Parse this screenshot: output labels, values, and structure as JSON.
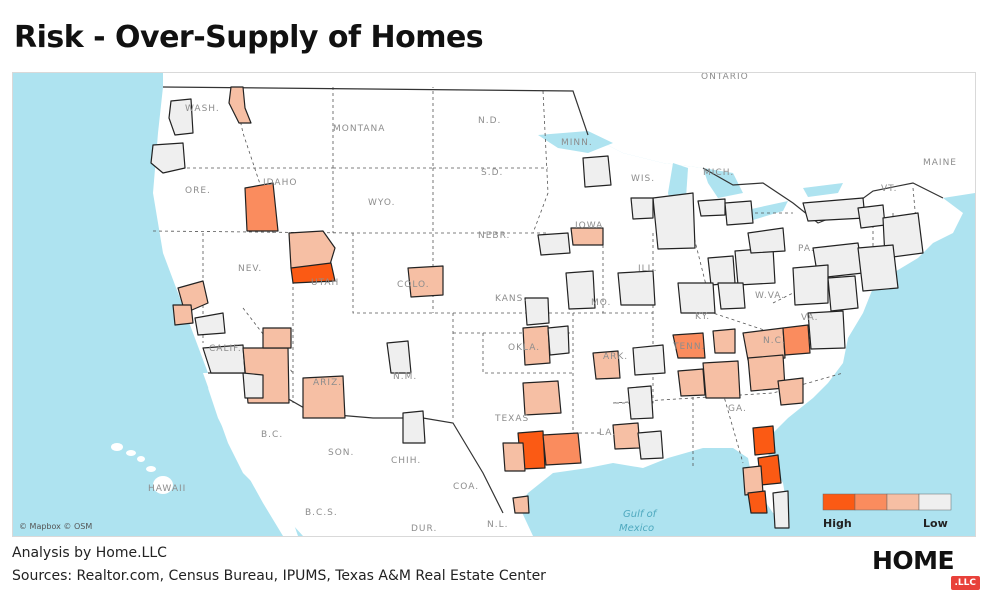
{
  "title": "Risk - Over-Supply of Homes",
  "footer": {
    "analysis": "Analysis by Home.LLC",
    "sources": "Sources: Realtor.com, Census Bureau, IPUMS, Texas A&M Real Estate Center"
  },
  "logo": {
    "main": "HOME",
    "badge": ".LLC"
  },
  "attribution": "© Mapbox © OSM",
  "legend": {
    "high_label": "High",
    "low_label": "Low",
    "colors": [
      "#fb5a14",
      "#fa8c5e",
      "#f6bfa4",
      "#efefef"
    ]
  },
  "labels": {
    "ontario": "ONTARIO",
    "wash": "WASH.",
    "montana": "MONTANA",
    "nd": "N.D.",
    "minn": "MINN.",
    "idaho": "IDAHO",
    "ore": "ORE.",
    "wyo": "WYO.",
    "sd": "S.D.",
    "wis": "WIS.",
    "mich": "MICH.",
    "maine": "MAINE",
    "vt": "VT.",
    "nebr": "NEBR.",
    "iowa": "IOWA",
    "pa": "PA.",
    "nev": "NEV.",
    "utah": "UTAH",
    "colo": "COLO.",
    "ill": "ILL.",
    "kans": "KANS.",
    "mo": "MO.",
    "wva": "W.VA.",
    "ky": "KY.",
    "va": "VA.",
    "calif": "CALIF.",
    "ariz": "ARIZ.",
    "nm": "N.M.",
    "okla": "OKLA.",
    "ark": "ARK.",
    "tenn": "TENN.",
    "nc": "N.C.",
    "texas": "TEXAS",
    "la": "LA.",
    "ga": "GA.",
    "bc": "B.C.",
    "son": "SON.",
    "chih": "CHIH.",
    "hawaii": "HAWAII",
    "coa": "COA.",
    "bcs": "B.C.S.",
    "dur": "DUR.",
    "nl": "N.L.",
    "gulf": "Gulf of",
    "mexico": "Mexico"
  }
}
